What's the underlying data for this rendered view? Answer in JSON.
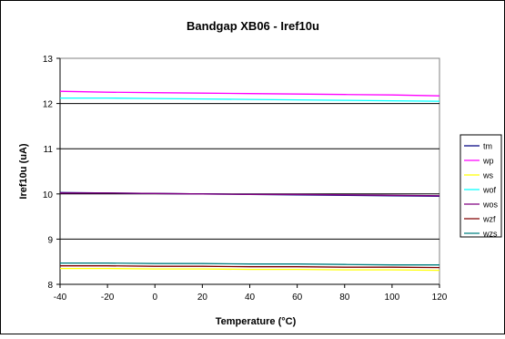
{
  "chart_data": {
    "type": "line",
    "title": "Bandgap XB06 - Iref10u",
    "xlabel": "Temperature (°C)",
    "ylabel": "Iref10u (uA)",
    "xlim": [
      -40,
      120
    ],
    "ylim": [
      8,
      13
    ],
    "xticks": [
      -40,
      -20,
      0,
      20,
      40,
      60,
      80,
      100,
      120
    ],
    "yticks": [
      8,
      9,
      10,
      11,
      12,
      13
    ],
    "grid": "horizontal",
    "legend_position": "right",
    "x": [
      -40,
      -20,
      0,
      20,
      40,
      60,
      80,
      100,
      120
    ],
    "series": [
      {
        "name": "tm",
        "color": "#000080",
        "values": [
          10.03,
          10.02,
          10.01,
          10.0,
          9.99,
          9.98,
          9.97,
          9.96,
          9.95
        ]
      },
      {
        "name": "wp",
        "color": "#ff00ff",
        "values": [
          12.27,
          12.25,
          12.24,
          12.23,
          12.22,
          12.21,
          12.2,
          12.19,
          12.17
        ]
      },
      {
        "name": "ws",
        "color": "#ffff00",
        "values": [
          8.35,
          8.35,
          8.34,
          8.34,
          8.33,
          8.33,
          8.32,
          8.32,
          8.31
        ]
      },
      {
        "name": "wof",
        "color": "#00ffff",
        "values": [
          12.12,
          12.12,
          12.11,
          12.1,
          12.09,
          12.08,
          12.07,
          12.06,
          12.05
        ]
      },
      {
        "name": "wos",
        "color": "#800080",
        "values": [
          10.02,
          10.02,
          10.01,
          10.0,
          9.99,
          9.99,
          9.98,
          9.97,
          9.96
        ]
      },
      {
        "name": "wzf",
        "color": "#800000",
        "values": [
          8.41,
          8.41,
          8.4,
          8.4,
          8.39,
          8.39,
          8.38,
          8.38,
          8.37
        ]
      },
      {
        "name": "wzs",
        "color": "#008080",
        "values": [
          8.47,
          8.47,
          8.46,
          8.46,
          8.45,
          8.45,
          8.44,
          8.43,
          8.43
        ]
      }
    ]
  }
}
